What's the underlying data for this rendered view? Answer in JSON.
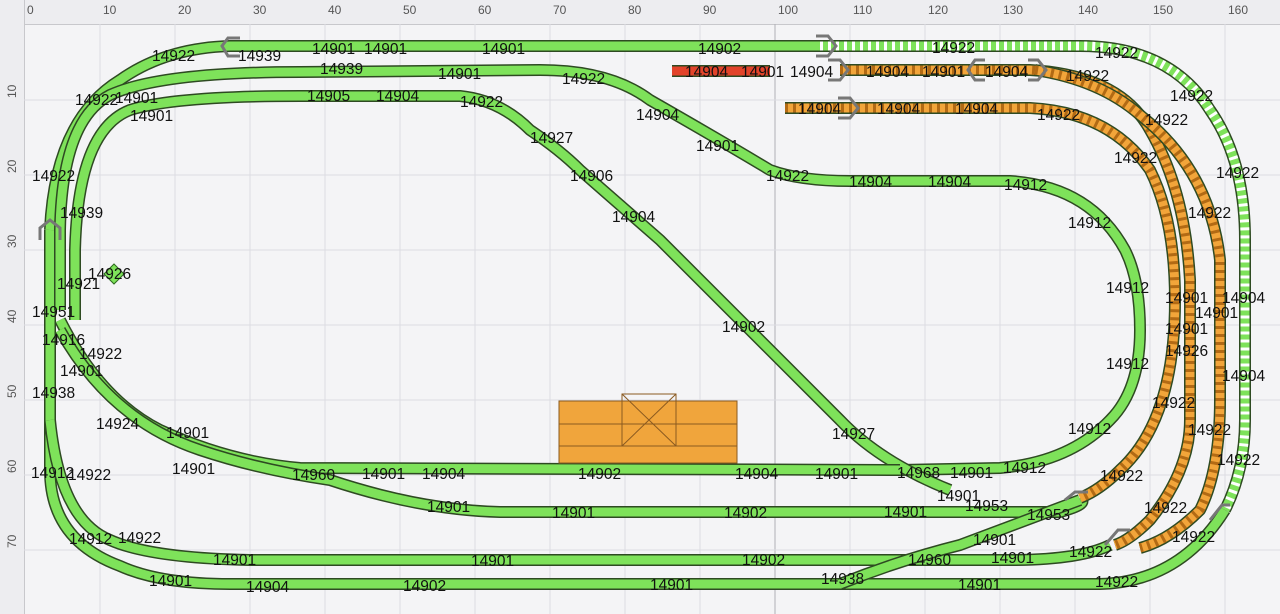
{
  "ruler": {
    "x_ticks": [
      "0",
      "10",
      "20",
      "30",
      "40",
      "50",
      "60",
      "70",
      "80",
      "90",
      "100",
      "110",
      "120",
      "130",
      "140",
      "150",
      "160"
    ],
    "y_ticks": [
      "10",
      "20",
      "30",
      "40",
      "50",
      "60",
      "70"
    ]
  },
  "colors": {
    "track_green": "#7ee25a",
    "track_orange": "#f2a53a",
    "track_red": "#e2432a",
    "platform": "#f0a53c"
  },
  "labels": {
    "l01": "14922",
    "l02": "14939",
    "l03": "14901",
    "l04": "14901",
    "l05": "14901",
    "l06": "14902",
    "l07": "14922",
    "l08": "14939",
    "l09": "14901",
    "l10": "14922",
    "l11": "14904",
    "l12": "14901",
    "l13": "14904",
    "l14": "14904",
    "l15": "14901",
    "l16": "14904",
    "l17": "14922",
    "l18": "14922",
    "l19": "14901",
    "l20": "14905",
    "l21": "14904",
    "l22": "14922",
    "l23": "14904",
    "l24": "14904",
    "l25": "14904",
    "l26": "14922",
    "l27": "14922",
    "l28": "14901",
    "l29": "14927",
    "l30": "14922",
    "l31": "14922",
    "l32": "14906",
    "l33": "14922",
    "l34": "14904",
    "l35": "14904",
    "l36": "14912",
    "l37": "14922",
    "l38": "14922",
    "l39": "14904",
    "l40": "14939",
    "l41": "14912",
    "l42": "14922",
    "l43": "14901",
    "l44": "14904",
    "l45": "14926",
    "l46": "14921",
    "l47": "14912",
    "l48": "14901",
    "l49": "14904",
    "l50": "14951",
    "l51": "14902",
    "l52": "14901",
    "l53": "14916",
    "l54": "14926",
    "l55": "14922",
    "l56": "14912",
    "l57": "14901",
    "l58": "14904",
    "l59": "14938",
    "l60": "14922",
    "l61": "14924",
    "l62": "14927",
    "l63": "14922",
    "l64": "14901",
    "l65": "14912",
    "l66": "14901",
    "l67": "14922",
    "l68": "14912",
    "l69": "14922",
    "l70": "14901",
    "l71": "14960",
    "l72": "14901",
    "l73": "14904",
    "l74": "14902",
    "l75": "14904",
    "l76": "14901",
    "l77": "14968",
    "l78": "14901",
    "l79": "14912",
    "l80": "14901",
    "l81": "14922",
    "l82": "14953",
    "l83": "14901",
    "l84": "14901",
    "l85": "14902",
    "l86": "14901",
    "l87": "14953",
    "l88": "14922",
    "l89": "14912",
    "l90": "14922",
    "l91": "14901",
    "l92": "14901",
    "l93": "14922",
    "l94": "14901",
    "l95": "14902",
    "l96": "14960",
    "l97": "14901",
    "l98": "14922",
    "l99": "14922",
    "l100": "14901",
    "l101": "14904",
    "l102": "14902",
    "l103": "14901",
    "l104": "14938",
    "l105": "14901",
    "l106": "14922"
  }
}
